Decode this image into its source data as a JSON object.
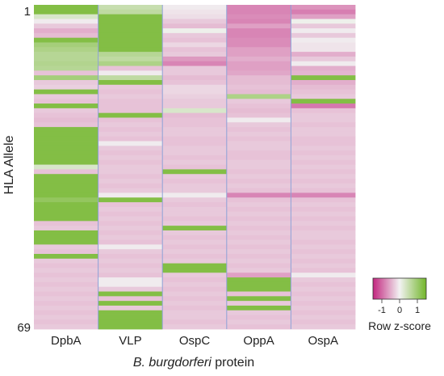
{
  "chart_data": {
    "type": "heatmap",
    "ylabel": "HLA Allele",
    "xlabel_italic": "B. burgdorferi",
    "xlabel_rest": " protein",
    "row_start_label": "1",
    "row_end_label": "69",
    "columns": [
      "DpbA",
      "VLP",
      "OspC",
      "OppA",
      "OspA"
    ],
    "n_rows": 69,
    "color_scale": {
      "low": "#c2267f",
      "mid": "#f2f2f2",
      "high": "#72b62a",
      "vmin": -1.5,
      "vmax": 1.5
    },
    "legend": {
      "title": "Row z-score",
      "ticks": [
        "-1",
        "0",
        "1"
      ]
    },
    "values": [
      [
        1.3,
        0.5,
        -0.05,
        -0.8,
        -0.7
      ],
      [
        1.3,
        0.6,
        -0.1,
        -0.8,
        -0.85
      ],
      [
        0.3,
        1.3,
        -0.15,
        -0.75,
        -0.6
      ],
      [
        -0.05,
        1.3,
        -0.3,
        -0.8,
        0.05
      ],
      [
        -0.3,
        1.3,
        -0.4,
        -0.6,
        -0.3
      ],
      [
        -0.5,
        1.3,
        0.05,
        -0.8,
        -0.05
      ],
      [
        -0.4,
        1.3,
        -0.3,
        -0.8,
        -0.3
      ],
      [
        1.3,
        1.3,
        -0.35,
        -0.75,
        -0.05
      ],
      [
        0.9,
        1.3,
        -0.2,
        -0.75,
        -0.1
      ],
      [
        0.8,
        1.3,
        -0.35,
        -0.6,
        -0.1
      ],
      [
        0.7,
        0.7,
        -0.3,
        -0.6,
        -0.5
      ],
      [
        0.7,
        0.6,
        -0.65,
        -0.5,
        -0.3
      ],
      [
        0.75,
        0.8,
        -0.8,
        -0.6,
        -0.05
      ],
      [
        0.7,
        -0.35,
        -0.3,
        -0.6,
        -0.5
      ],
      [
        -0.35,
        -0.05,
        -0.3,
        -0.55,
        -0.45
      ],
      [
        0.9,
        0.6,
        -0.4,
        -0.4,
        1.3
      ],
      [
        -0.3,
        1.3,
        -0.35,
        -0.4,
        -0.5
      ],
      [
        -0.25,
        -0.3,
        -0.2,
        -0.35,
        -0.4
      ],
      [
        1.3,
        -0.35,
        -0.2,
        -0.4,
        -0.35
      ],
      [
        -0.3,
        -0.3,
        -0.25,
        0.8,
        -0.3
      ],
      [
        -0.35,
        -0.35,
        -0.3,
        -0.3,
        1.3
      ],
      [
        1.3,
        -0.35,
        -0.3,
        -0.35,
        -0.9
      ],
      [
        -0.3,
        -0.35,
        0.3,
        -0.4,
        -0.35
      ],
      [
        -0.35,
        1.3,
        -0.4,
        -0.35,
        -0.3
      ],
      [
        -0.4,
        -0.35,
        -0.35,
        -0.05,
        -0.3
      ],
      [
        -0.35,
        -0.3,
        -0.35,
        -0.3,
        -0.35
      ],
      [
        1.3,
        -0.35,
        -0.3,
        -0.35,
        -0.3
      ],
      [
        1.3,
        -0.3,
        -0.3,
        -0.3,
        -0.3
      ],
      [
        1.3,
        -0.35,
        -0.35,
        -0.35,
        -0.35
      ],
      [
        1.3,
        -0.05,
        -0.35,
        -0.3,
        -0.35
      ],
      [
        1.3,
        -0.3,
        -0.3,
        -0.3,
        -0.3
      ],
      [
        1.3,
        -0.35,
        -0.3,
        -0.35,
        -0.35
      ],
      [
        1.3,
        -0.3,
        -0.35,
        -0.35,
        -0.3
      ],
      [
        1.3,
        -0.35,
        -0.3,
        -0.3,
        -0.35
      ],
      [
        0.3,
        -0.3,
        -0.35,
        -0.3,
        -0.3
      ],
      [
        -0.35,
        -0.3,
        1.3,
        -0.35,
        -0.35
      ],
      [
        1.3,
        -0.35,
        -0.3,
        -0.3,
        -0.3
      ],
      [
        1.3,
        -0.3,
        -0.35,
        -0.35,
        -0.35
      ],
      [
        1.3,
        -0.35,
        -0.3,
        -0.3,
        -0.3
      ],
      [
        1.3,
        -0.3,
        -0.3,
        -0.35,
        -0.35
      ],
      [
        1.3,
        -0.05,
        -0.05,
        -0.8,
        -0.8
      ],
      [
        1.1,
        1.3,
        -0.3,
        -0.35,
        -0.35
      ],
      [
        1.3,
        -0.35,
        -0.35,
        -0.3,
        -0.3
      ],
      [
        1.3,
        -0.3,
        -0.3,
        -0.35,
        -0.35
      ],
      [
        1.3,
        -0.35,
        -0.3,
        -0.3,
        -0.3
      ],
      [
        1.3,
        -0.3,
        -0.35,
        -0.35,
        -0.35
      ],
      [
        -0.35,
        -0.35,
        -0.3,
        -0.3,
        -0.3
      ],
      [
        -0.3,
        -0.3,
        1.3,
        -0.35,
        -0.35
      ],
      [
        1.3,
        -0.35,
        -0.3,
        -0.3,
        -0.3
      ],
      [
        1.3,
        -0.3,
        -0.35,
        -0.35,
        -0.3
      ],
      [
        1.3,
        -0.35,
        -0.3,
        -0.3,
        -0.35
      ],
      [
        -0.3,
        -0.05,
        -0.35,
        -0.35,
        -0.3
      ],
      [
        -0.35,
        -0.3,
        -0.3,
        -0.3,
        -0.35
      ],
      [
        1.3,
        -0.35,
        -0.35,
        -0.35,
        -0.3
      ],
      [
        -0.3,
        -0.3,
        -0.3,
        -0.3,
        -0.35
      ],
      [
        -0.35,
        -0.35,
        1.3,
        -0.35,
        -0.3
      ],
      [
        -0.3,
        -0.3,
        1.3,
        -0.3,
        -0.35
      ],
      [
        -0.35,
        -0.35,
        -0.3,
        -0.6,
        -0.05
      ],
      [
        -0.3,
        -0.05,
        -0.35,
        1.3,
        -0.3
      ],
      [
        -0.35,
        -0.05,
        -0.3,
        1.3,
        -0.35
      ],
      [
        -0.3,
        -0.3,
        -0.35,
        1.3,
        -0.3
      ],
      [
        -0.35,
        1.3,
        -0.3,
        -0.35,
        -0.35
      ],
      [
        -0.3,
        -0.35,
        -0.35,
        1.3,
        -0.3
      ],
      [
        -0.35,
        1.3,
        -0.3,
        -0.3,
        -0.35
      ],
      [
        -0.3,
        -0.3,
        -0.35,
        1.3,
        -0.3
      ],
      [
        -0.35,
        1.3,
        -0.3,
        -0.3,
        -0.35
      ],
      [
        -0.3,
        1.3,
        -0.3,
        -0.35,
        -0.3
      ],
      [
        -0.35,
        1.3,
        -0.35,
        -0.3,
        -0.35
      ],
      [
        -0.3,
        1.3,
        -0.3,
        -0.35,
        -0.3
      ]
    ]
  }
}
